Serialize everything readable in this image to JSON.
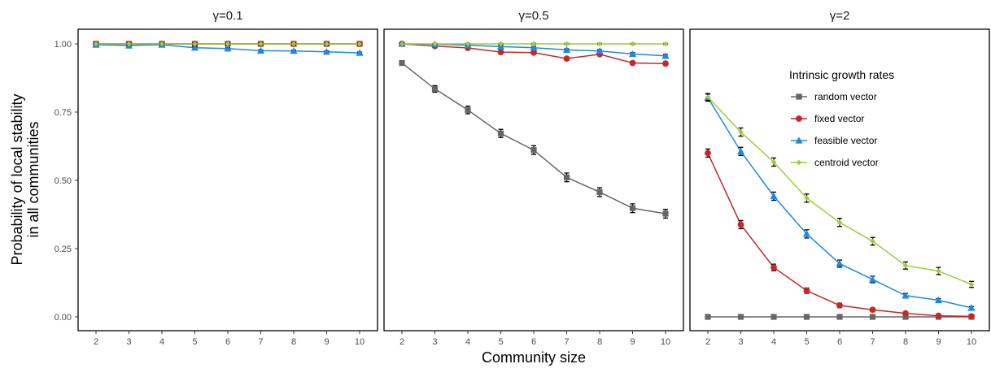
{
  "chart_data": {
    "type": "line",
    "facets": [
      "γ=0.1",
      "γ=0.5",
      "γ=2"
    ],
    "x": [
      2,
      3,
      4,
      5,
      6,
      7,
      8,
      9,
      10
    ],
    "xlabel": "Community size",
    "ylabel_lines": [
      "Probability of local stability",
      "in all communities"
    ],
    "ylim": [
      0,
      1
    ],
    "yticks": [
      "0.00",
      "0.25",
      "0.50",
      "0.75",
      "1.00"
    ],
    "legend": {
      "title": "Intrinsic growth rates",
      "placement": "inside third panel, top-right"
    },
    "series": [
      {
        "name": "random vector",
        "color": "#666666",
        "marker": "square",
        "panels": [
          [
            1.0,
            1.0,
            1.0,
            1.0,
            1.0,
            1.0,
            1.0,
            1.0,
            1.0
          ],
          [
            0.93,
            0.835,
            0.758,
            0.672,
            0.611,
            0.511,
            0.457,
            0.398,
            0.378
          ],
          [
            0.0,
            0.0,
            0.0,
            0.0,
            0.0,
            0.0,
            0.0,
            0.0,
            0.0
          ]
        ]
      },
      {
        "name": "fixed vector",
        "color": "#c62828",
        "marker": "circle",
        "panels": [
          [
            1.0,
            1.0,
            1.0,
            1.0,
            1.0,
            1.0,
            1.0,
            1.0,
            1.0
          ],
          [
            1.0,
            0.992,
            0.985,
            0.97,
            0.968,
            0.946,
            0.962,
            0.93,
            0.928
          ],
          [
            0.6,
            0.338,
            0.181,
            0.096,
            0.042,
            0.026,
            0.013,
            0.004,
            0.002
          ]
        ]
      },
      {
        "name": "feasible vector",
        "color": "#1e88e5",
        "marker": "triangle",
        "panels": [
          [
            0.997,
            0.994,
            0.997,
            0.986,
            0.983,
            0.975,
            0.974,
            0.971,
            0.967
          ],
          [
            1.0,
            0.999,
            0.995,
            0.99,
            0.986,
            0.978,
            0.974,
            0.963,
            0.956
          ],
          [
            0.803,
            0.606,
            0.442,
            0.304,
            0.195,
            0.137,
            0.078,
            0.061,
            0.033
          ]
        ]
      },
      {
        "name": "centroid vector",
        "color": "#9ccc3c",
        "marker": "diamond",
        "panels": [
          [
            1.0,
            1.0,
            1.0,
            1.0,
            1.0,
            1.0,
            1.0,
            1.0,
            1.0
          ],
          [
            1.0,
            1.0,
            1.0,
            1.0,
            1.0,
            1.0,
            1.0,
            1.0,
            1.0
          ],
          [
            0.805,
            0.677,
            0.567,
            0.435,
            0.346,
            0.277,
            0.188,
            0.168,
            0.119
          ]
        ]
      }
    ],
    "errorbars": [
      [
        [
          0.003,
          0.003,
          0.003,
          0.003,
          0.003,
          0.003,
          0.003,
          0.003,
          0.003
        ],
        [
          0.003,
          0.003,
          0.003,
          0.003,
          0.003,
          0.003,
          0.003,
          0.003,
          0.003
        ],
        [
          0.003,
          0.003,
          0.003,
          0.003,
          0.003,
          0.003,
          0.003,
          0.003,
          0.003
        ],
        [
          0.003,
          0.003,
          0.003,
          0.003,
          0.003,
          0.003,
          0.003,
          0.003,
          0.003
        ]
      ],
      [
        [
          0.008,
          0.012,
          0.014,
          0.015,
          0.016,
          0.016,
          0.016,
          0.016,
          0.016
        ],
        [
          0.003,
          0.004,
          0.004,
          0.004,
          0.004,
          0.006,
          0.006,
          0.006,
          0.006
        ],
        [
          0.003,
          0.003,
          0.003,
          0.004,
          0.004,
          0.004,
          0.005,
          0.005,
          0.005
        ],
        [
          0.002,
          0.002,
          0.002,
          0.002,
          0.002,
          0.002,
          0.002,
          0.002,
          0.002
        ]
      ],
      [
        [
          0.002,
          0.002,
          0.002,
          0.002,
          0.002,
          0.002,
          0.002,
          0.002,
          0.002
        ],
        [
          0.015,
          0.015,
          0.012,
          0.01,
          0.008,
          0.006,
          0.005,
          0.004,
          0.003
        ],
        [
          0.013,
          0.015,
          0.015,
          0.015,
          0.013,
          0.012,
          0.008,
          0.006,
          0.005
        ],
        [
          0.013,
          0.015,
          0.015,
          0.015,
          0.015,
          0.014,
          0.013,
          0.013,
          0.011
        ]
      ]
    ]
  }
}
